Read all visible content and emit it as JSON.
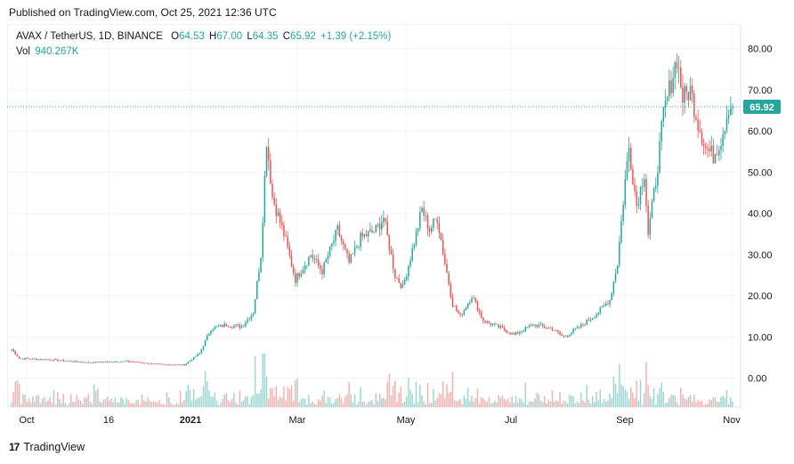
{
  "header": {
    "published": "Published on TradingView.com, Oct 25, 2021 12:36 UTC"
  },
  "legend": {
    "symbol": "AVAX / TetherUS, 1D, BINANCE",
    "open_label": "O",
    "open": "64.53",
    "high_label": "H",
    "high": "67.00",
    "low_label": "L",
    "low": "64.35",
    "close_label": "C",
    "close": "65.92",
    "change": "+1.39 (+2.15%)",
    "vol_label": "Vol",
    "vol": "940.267K"
  },
  "footer": {
    "brand": "TradingView"
  },
  "colors": {
    "up": "#26a69a",
    "down": "#ef5350",
    "up_vol": "#9fd6d1",
    "down_vol": "#f5b2b0",
    "grid": "#f0f3fa",
    "price_line": "#26a69a"
  },
  "chart_data": {
    "type": "candlestick",
    "y_ticks": [
      "80.00",
      "70.00",
      "60.00",
      "50.00",
      "40.00",
      "30.00",
      "20.00",
      "10.00",
      "0.00"
    ],
    "ylim": [
      -7,
      86
    ],
    "x_ticks": [
      "Oct",
      "16",
      "2021",
      "Mar",
      "May",
      "Jul",
      "Sep",
      "Nov"
    ],
    "last_price": "65.92",
    "last_price_value": 65.92,
    "anchors": [
      {
        "x": 0,
        "y": 7.0
      },
      {
        "x": 4,
        "y": 4.8
      },
      {
        "x": 20,
        "y": 4.5
      },
      {
        "x": 40,
        "y": 3.8
      },
      {
        "x": 60,
        "y": 4.1
      },
      {
        "x": 75,
        "y": 3.4
      },
      {
        "x": 90,
        "y": 3.2
      },
      {
        "x": 98,
        "y": 6.0
      },
      {
        "x": 104,
        "y": 12.0
      },
      {
        "x": 112,
        "y": 13.0
      },
      {
        "x": 120,
        "y": 12.5
      },
      {
        "x": 126,
        "y": 16.0
      },
      {
        "x": 130,
        "y": 30.0
      },
      {
        "x": 133,
        "y": 58.0
      },
      {
        "x": 136,
        "y": 44.0
      },
      {
        "x": 142,
        "y": 35.0
      },
      {
        "x": 148,
        "y": 24.0
      },
      {
        "x": 156,
        "y": 30.0
      },
      {
        "x": 162,
        "y": 26.0
      },
      {
        "x": 170,
        "y": 36.0
      },
      {
        "x": 176,
        "y": 28.0
      },
      {
        "x": 182,
        "y": 34.0
      },
      {
        "x": 190,
        "y": 36.0
      },
      {
        "x": 194,
        "y": 39.0
      },
      {
        "x": 200,
        "y": 25.0
      },
      {
        "x": 204,
        "y": 22.0
      },
      {
        "x": 210,
        "y": 33.0
      },
      {
        "x": 214,
        "y": 41.0
      },
      {
        "x": 218,
        "y": 36.0
      },
      {
        "x": 222,
        "y": 39.0
      },
      {
        "x": 226,
        "y": 28.0
      },
      {
        "x": 230,
        "y": 18.0
      },
      {
        "x": 234,
        "y": 15.0
      },
      {
        "x": 240,
        "y": 20.0
      },
      {
        "x": 246,
        "y": 14.0
      },
      {
        "x": 256,
        "y": 12.0
      },
      {
        "x": 262,
        "y": 10.5
      },
      {
        "x": 272,
        "y": 13.0
      },
      {
        "x": 282,
        "y": 12.0
      },
      {
        "x": 288,
        "y": 10.0
      },
      {
        "x": 298,
        "y": 13.0
      },
      {
        "x": 306,
        "y": 16.0
      },
      {
        "x": 312,
        "y": 19.0
      },
      {
        "x": 316,
        "y": 28.0
      },
      {
        "x": 320,
        "y": 48.0
      },
      {
        "x": 322,
        "y": 56.0
      },
      {
        "x": 326,
        "y": 42.0
      },
      {
        "x": 330,
        "y": 50.0
      },
      {
        "x": 332,
        "y": 35.0
      },
      {
        "x": 336,
        "y": 48.0
      },
      {
        "x": 340,
        "y": 64.0
      },
      {
        "x": 344,
        "y": 72.0
      },
      {
        "x": 347,
        "y": 78.0
      },
      {
        "x": 350,
        "y": 68.0
      },
      {
        "x": 354,
        "y": 70.0
      },
      {
        "x": 358,
        "y": 62.0
      },
      {
        "x": 362,
        "y": 56.0
      },
      {
        "x": 366,
        "y": 54.0
      },
      {
        "x": 370,
        "y": 58.0
      },
      {
        "x": 374,
        "y": 66.0
      },
      {
        "x": 376,
        "y": 65.92
      }
    ],
    "n_bars": 377
  }
}
